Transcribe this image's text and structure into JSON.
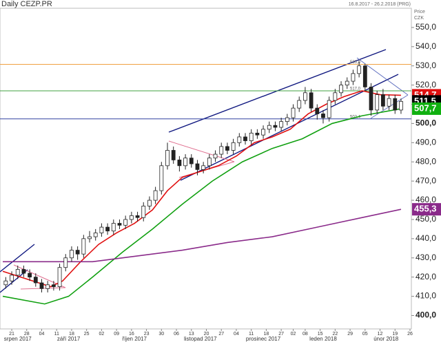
{
  "chart_data": {
    "type": "candlestick",
    "title": "Daily CEZP.PR",
    "subtitle": "16.8.2017 - 26.2.2018 (PRG)",
    "y_axis_title": "Price",
    "y_axis_unit": "CZK",
    "xlim": [
      0,
      136
    ],
    "xticks": [
      {
        "value": 3,
        "label": "21"
      },
      {
        "value": 8,
        "label": "28"
      },
      {
        "value": 13,
        "label": "04"
      },
      {
        "value": 18,
        "label": "11"
      },
      {
        "value": 23,
        "label": "18"
      },
      {
        "value": 28,
        "label": "25"
      },
      {
        "value": 33,
        "label": "02"
      },
      {
        "value": 38,
        "label": "09"
      },
      {
        "value": 43,
        "label": "16"
      },
      {
        "value": 48,
        "label": "23"
      },
      {
        "value": 53,
        "label": "30"
      },
      {
        "value": 58,
        "label": "06"
      },
      {
        "value": 63,
        "label": "13"
      },
      {
        "value": 68,
        "label": "20"
      },
      {
        "value": 73,
        "label": "27"
      },
      {
        "value": 78,
        "label": "04"
      },
      {
        "value": 83,
        "label": "11"
      },
      {
        "value": 88,
        "label": "18"
      },
      {
        "value": 93,
        "label": "27"
      },
      {
        "value": 97,
        "label": "02"
      },
      {
        "value": 101,
        "label": "08"
      },
      {
        "value": 106,
        "label": "15"
      },
      {
        "value": 111,
        "label": "22"
      },
      {
        "value": 116,
        "label": "29"
      },
      {
        "value": 121,
        "label": "05"
      },
      {
        "value": 126,
        "label": "12"
      },
      {
        "value": 131,
        "label": "19"
      },
      {
        "value": 136,
        "label": "26"
      }
    ],
    "month_labels": [
      {
        "value": 5,
        "label": "srpen 2017"
      },
      {
        "value": 22,
        "label": "září 2017"
      },
      {
        "value": 44,
        "label": "říjen 2017"
      },
      {
        "value": 66,
        "label": "listopad 2017"
      },
      {
        "value": 87,
        "label": "prosinec 2017"
      },
      {
        "value": 107,
        "label": "leden 2018"
      },
      {
        "value": 128,
        "label": "únor 2018"
      }
    ],
    "ylim": [
      393,
      560
    ],
    "yticks": [
      {
        "value": 400,
        "label": "400,0"
      },
      {
        "value": 410,
        "label": "410,0"
      },
      {
        "value": 420,
        "label": "420,0"
      },
      {
        "value": 430,
        "label": "430,0"
      },
      {
        "value": 440,
        "label": "440,0"
      },
      {
        "value": 450,
        "label": "450,0"
      },
      {
        "value": 460,
        "label": "460,0"
      },
      {
        "value": 470,
        "label": "470,0"
      },
      {
        "value": 480,
        "label": "480,0"
      },
      {
        "value": 490,
        "label": "490,0"
      },
      {
        "value": 500,
        "label": "500,0"
      },
      {
        "value": 510,
        "label": "510,0"
      },
      {
        "value": 520,
        "label": "520,0"
      },
      {
        "value": 530,
        "label": "530,0"
      },
      {
        "value": 540,
        "label": "540,0"
      },
      {
        "value": 550,
        "label": "550,0"
      }
    ],
    "candles": {
      "x": [
        1,
        3,
        5,
        7,
        9,
        11,
        13,
        15,
        17,
        19,
        21,
        23,
        25,
        27,
        29,
        31,
        33,
        35,
        37,
        39,
        41,
        43,
        45,
        47,
        49,
        51,
        53,
        55,
        57,
        59,
        61,
        63,
        65,
        67,
        69,
        71,
        73,
        75,
        77,
        79,
        81,
        83,
        85,
        87,
        89,
        91,
        93,
        95,
        97,
        99,
        101,
        103,
        105,
        107,
        109,
        111,
        113,
        115,
        117,
        119,
        121,
        123,
        125,
        127,
        129,
        131,
        133
      ],
      "open": [
        416,
        418,
        421,
        424,
        422,
        420,
        417,
        414,
        416,
        415,
        425,
        430,
        434,
        432,
        440,
        441,
        443,
        446,
        444,
        448,
        447,
        450,
        452,
        451,
        457,
        460,
        465,
        478,
        486,
        481,
        478,
        482,
        479,
        476,
        478,
        482,
        484,
        488,
        486,
        490,
        493,
        491,
        495,
        494,
        497,
        499,
        498,
        501,
        503,
        508,
        512,
        516,
        508,
        505,
        503,
        512,
        516,
        520,
        522,
        526,
        530,
        519,
        507,
        515,
        509,
        513,
        507
      ],
      "high": [
        420,
        423,
        426,
        426,
        424,
        422,
        419,
        418,
        418,
        427,
        432,
        436,
        436,
        442,
        444,
        445,
        448,
        448,
        450,
        450,
        452,
        454,
        454,
        459,
        462,
        467,
        480,
        490,
        488,
        483,
        484,
        484,
        481,
        480,
        484,
        486,
        490,
        490,
        492,
        495,
        495,
        497,
        497,
        499,
        501,
        501,
        503,
        505,
        510,
        514,
        519,
        518,
        510,
        507,
        514,
        518,
        522,
        524,
        528,
        532,
        531,
        521,
        517,
        518,
        515,
        515,
        513
      ],
      "low": [
        414,
        416,
        419,
        420,
        418,
        415,
        412,
        412,
        413,
        413,
        423,
        428,
        429,
        430,
        438,
        439,
        441,
        442,
        442,
        445,
        445,
        448,
        449,
        449,
        455,
        458,
        463,
        476,
        479,
        475,
        476,
        477,
        473,
        474,
        476,
        480,
        482,
        484,
        484,
        488,
        489,
        489,
        492,
        492,
        495,
        496,
        496,
        499,
        501,
        506,
        510,
        506,
        502,
        500,
        501,
        510,
        514,
        518,
        520,
        524,
        517,
        504,
        505,
        507,
        507,
        505,
        505
      ],
      "close": [
        418,
        421,
        424,
        422,
        420,
        417,
        414,
        416,
        415,
        425,
        430,
        434,
        432,
        440,
        441,
        443,
        446,
        444,
        448,
        447,
        450,
        452,
        451,
        457,
        460,
        465,
        478,
        486,
        481,
        478,
        482,
        479,
        476,
        478,
        482,
        484,
        488,
        486,
        490,
        493,
        491,
        495,
        494,
        497,
        499,
        498,
        501,
        503,
        508,
        512,
        516,
        508,
        505,
        503,
        512,
        516,
        520,
        522,
        526,
        530,
        519,
        507,
        515,
        509,
        513,
        507,
        511.5
      ]
    },
    "series": [
      {
        "color": "#e01010",
        "x": [
          0,
          10,
          16,
          20,
          26,
          32,
          38,
          44,
          50,
          55,
          60,
          66,
          72,
          78,
          84,
          90,
          96,
          102,
          108,
          114,
          120,
          126,
          133
        ],
        "values": [
          423,
          418,
          415,
          418,
          428,
          437,
          443,
          448,
          455,
          465,
          472,
          475,
          478,
          483,
          490,
          493,
          497,
          505,
          510,
          514,
          517,
          515,
          514.7
        ]
      },
      {
        "color": "#10a010",
        "x": [
          0,
          14,
          22,
          30,
          40,
          50,
          60,
          70,
          80,
          90,
          100,
          110,
          120,
          133
        ],
        "values": [
          410,
          406,
          410,
          420,
          433,
          445,
          458,
          470,
          480,
          487,
          492,
          500,
          504,
          507.7
        ]
      },
      {
        "color": "#8a2a8a",
        "x": [
          0,
          15,
          30,
          45,
          60,
          75,
          90,
          105,
          120,
          133
        ],
        "values": [
          428,
          428,
          428,
          431,
          434,
          438,
          441,
          446,
          451,
          455.3
        ]
      }
    ],
    "levels": [
      {
        "value": 530.8,
        "label": "530,8",
        "color": "#f0a040"
      },
      {
        "value": 517.0,
        "label": "517,0",
        "color": "#40a040"
      },
      {
        "value": 502.4,
        "label": "502,4",
        "color": "#3040a0"
      }
    ],
    "price_markers": [
      {
        "value": 514.7,
        "label": "514,7",
        "color": "#e01010"
      },
      {
        "value": 511.5,
        "label": "511,5",
        "color": "#000000"
      },
      {
        "value": 507.7,
        "label": "507,7",
        "color": "#10b010"
      },
      {
        "value": 455.3,
        "label": "455,3",
        "color": "#8a2a8a"
      }
    ]
  }
}
